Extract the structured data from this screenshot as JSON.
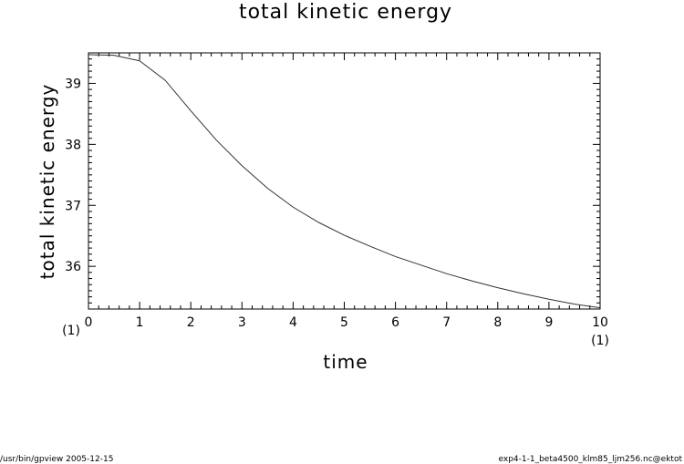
{
  "chart_data": {
    "type": "line",
    "title": "total kinetic energy",
    "xlabel": "time",
    "ylabel": "total kinetic energy",
    "xlim": [
      0,
      10
    ],
    "ylim": [
      35.3,
      39.5
    ],
    "x_ticks": [
      "0",
      "1",
      "2",
      "3",
      "4",
      "5",
      "6",
      "7",
      "8",
      "9",
      "10"
    ],
    "y_ticks": [
      "36",
      "37",
      "38",
      "39"
    ],
    "x_unit": "(1)",
    "y_unit": "(1)",
    "grid": false,
    "series": [
      {
        "x": [
          0,
          0.5,
          1.0,
          1.5,
          2.0,
          2.5,
          3.0,
          3.5,
          4.0,
          4.5,
          5.0,
          5.5,
          6.0,
          6.5,
          7.0,
          7.5,
          8.0,
          8.5,
          9.0,
          9.5,
          10.0
        ],
        "values": [
          39.47,
          39.46,
          39.37,
          39.05,
          38.55,
          38.07,
          37.65,
          37.28,
          36.97,
          36.72,
          36.51,
          36.33,
          36.16,
          36.02,
          35.88,
          35.76,
          35.65,
          35.55,
          35.46,
          35.38,
          35.32
        ]
      }
    ]
  },
  "footer": {
    "left": "/usr/bin/gpview   2005-12-15",
    "right": "exp4-1-1_beta4500_klm85_ljm256.nc@ektot"
  }
}
